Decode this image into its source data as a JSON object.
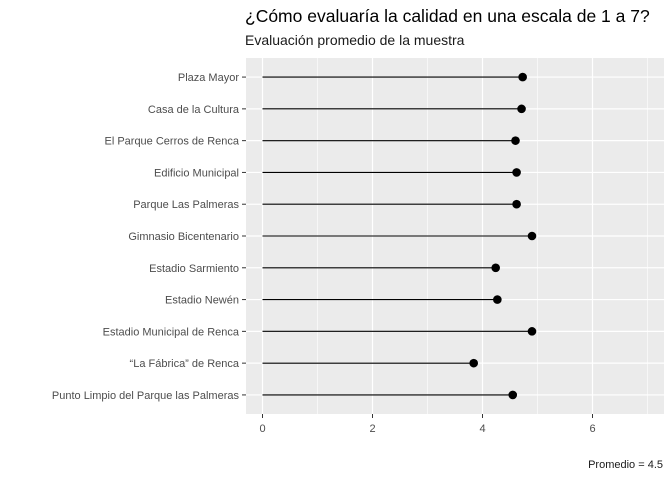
{
  "chart_data": {
    "type": "lollipop",
    "title": "¿Cómo evaluaría la calidad en una escala de 1 a 7?",
    "subtitle": "Evaluación promedio de la muestra",
    "caption": "Promedio =  4.5",
    "xlabel": "",
    "ylabel": "",
    "xlim": [
      -0.3,
      7.3
    ],
    "x_ticks": [
      0,
      2,
      4,
      6
    ],
    "x_tick_labels": [
      "0",
      "2",
      "4",
      "6"
    ],
    "categories": [
      "Plaza Mayor",
      "Casa de la Cultura",
      "El Parque Cerros de Renca",
      "Edificio Municipal",
      "Parque Las Palmeras",
      "Gimnasio Bicentenario",
      "Estadio Sarmiento",
      "Estadio Newén",
      "Estadio Municipal de Renca",
      "“La Fábrica” de Renca",
      "Punto Limpio del Parque las Palmeras"
    ],
    "values": [
      4.73,
      4.71,
      4.6,
      4.62,
      4.62,
      4.9,
      4.24,
      4.27,
      4.9,
      3.84,
      4.55
    ],
    "grid": true,
    "colors": {
      "panel": "#ebebeb",
      "grid": "#ffffff",
      "mark": "#000000"
    }
  }
}
